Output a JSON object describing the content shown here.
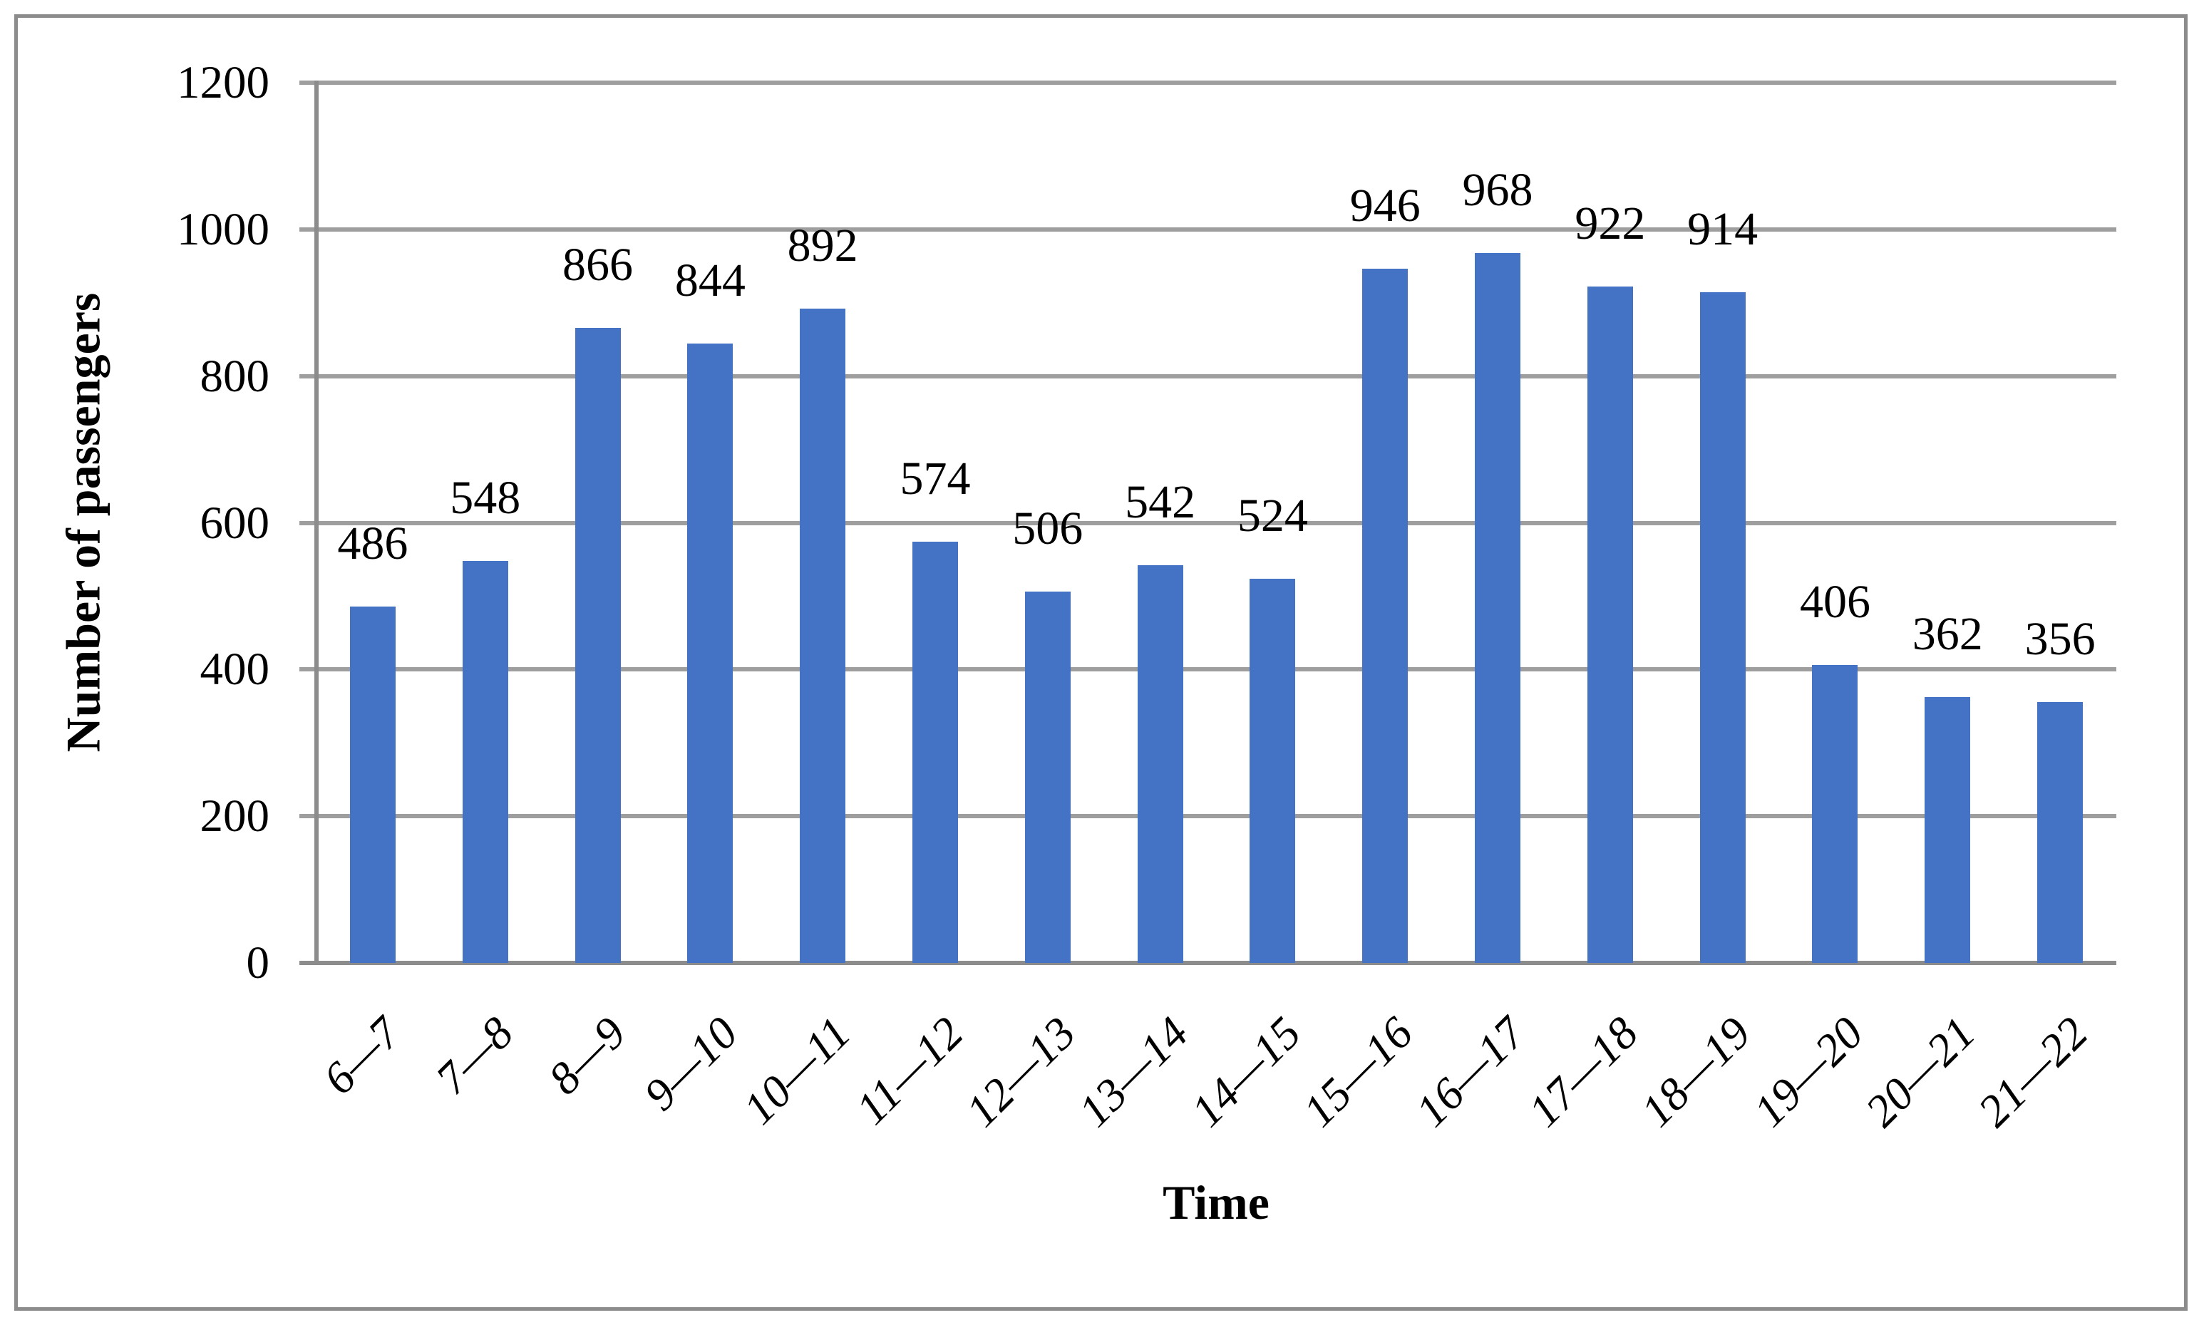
{
  "chart_data": {
    "type": "bar",
    "title": "",
    "xlabel": "Time",
    "ylabel": "Number of passengers",
    "categories": [
      "6—7",
      "7—8",
      "8—9",
      "9—10",
      "10—11",
      "11—12",
      "12—13",
      "13—14",
      "14—15",
      "15—16",
      "16—17",
      "17—18",
      "18—19",
      "19—20",
      "20—21",
      "21—22"
    ],
    "values": [
      486,
      548,
      866,
      844,
      892,
      574,
      506,
      542,
      524,
      946,
      968,
      922,
      914,
      406,
      362,
      356
    ],
    "ylim": [
      0,
      1200
    ],
    "yticks": [
      0,
      200,
      400,
      600,
      800,
      1000,
      1200
    ],
    "grid": "horizontal",
    "legend": "none",
    "data_labels": "above-bars",
    "colors": {
      "bar": "#4472C4",
      "gridline": "#9E9E9E",
      "axis": "#8C8C8C",
      "text": "#000000",
      "background": "#FFFFFF"
    }
  }
}
